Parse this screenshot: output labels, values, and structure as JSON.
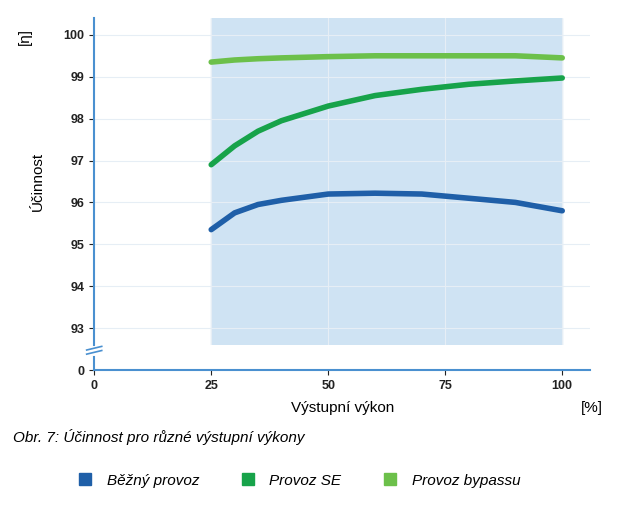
{
  "chart_data": {
    "type": "line",
    "y_label": "Účinnost",
    "y_unit": "[η]",
    "x_label": "Výstupní výkon",
    "x_unit": "[%]",
    "caption": "Obr. 7: Účinnost pro různé výstupní výkony",
    "x": [
      25,
      30,
      35,
      40,
      50,
      60,
      70,
      80,
      90,
      100
    ],
    "series": [
      {
        "name": "Běžný provoz",
        "color": "#1f5fa8",
        "values": [
          95.35,
          95.75,
          95.95,
          96.05,
          96.2,
          96.22,
          96.2,
          96.1,
          96.0,
          95.8
        ]
      },
      {
        "name": "Provoz SE",
        "color": "#17a34a",
        "values": [
          96.9,
          97.35,
          97.7,
          97.95,
          98.3,
          98.55,
          98.7,
          98.82,
          98.9,
          98.97
        ]
      },
      {
        "name": "Provoz bypassu",
        "color": "#6cc04a",
        "values": [
          99.35,
          99.4,
          99.43,
          99.45,
          99.48,
          99.5,
          99.5,
          99.5,
          99.5,
          99.45
        ]
      }
    ],
    "xlim": [
      0,
      106
    ],
    "xticks": [
      0,
      25,
      50,
      75,
      100
    ],
    "ylim": [
      0,
      100.4
    ],
    "yticks": [
      0,
      93,
      94,
      95,
      96,
      97,
      98,
      99,
      100
    ],
    "grid": true,
    "legend": "lower center"
  }
}
